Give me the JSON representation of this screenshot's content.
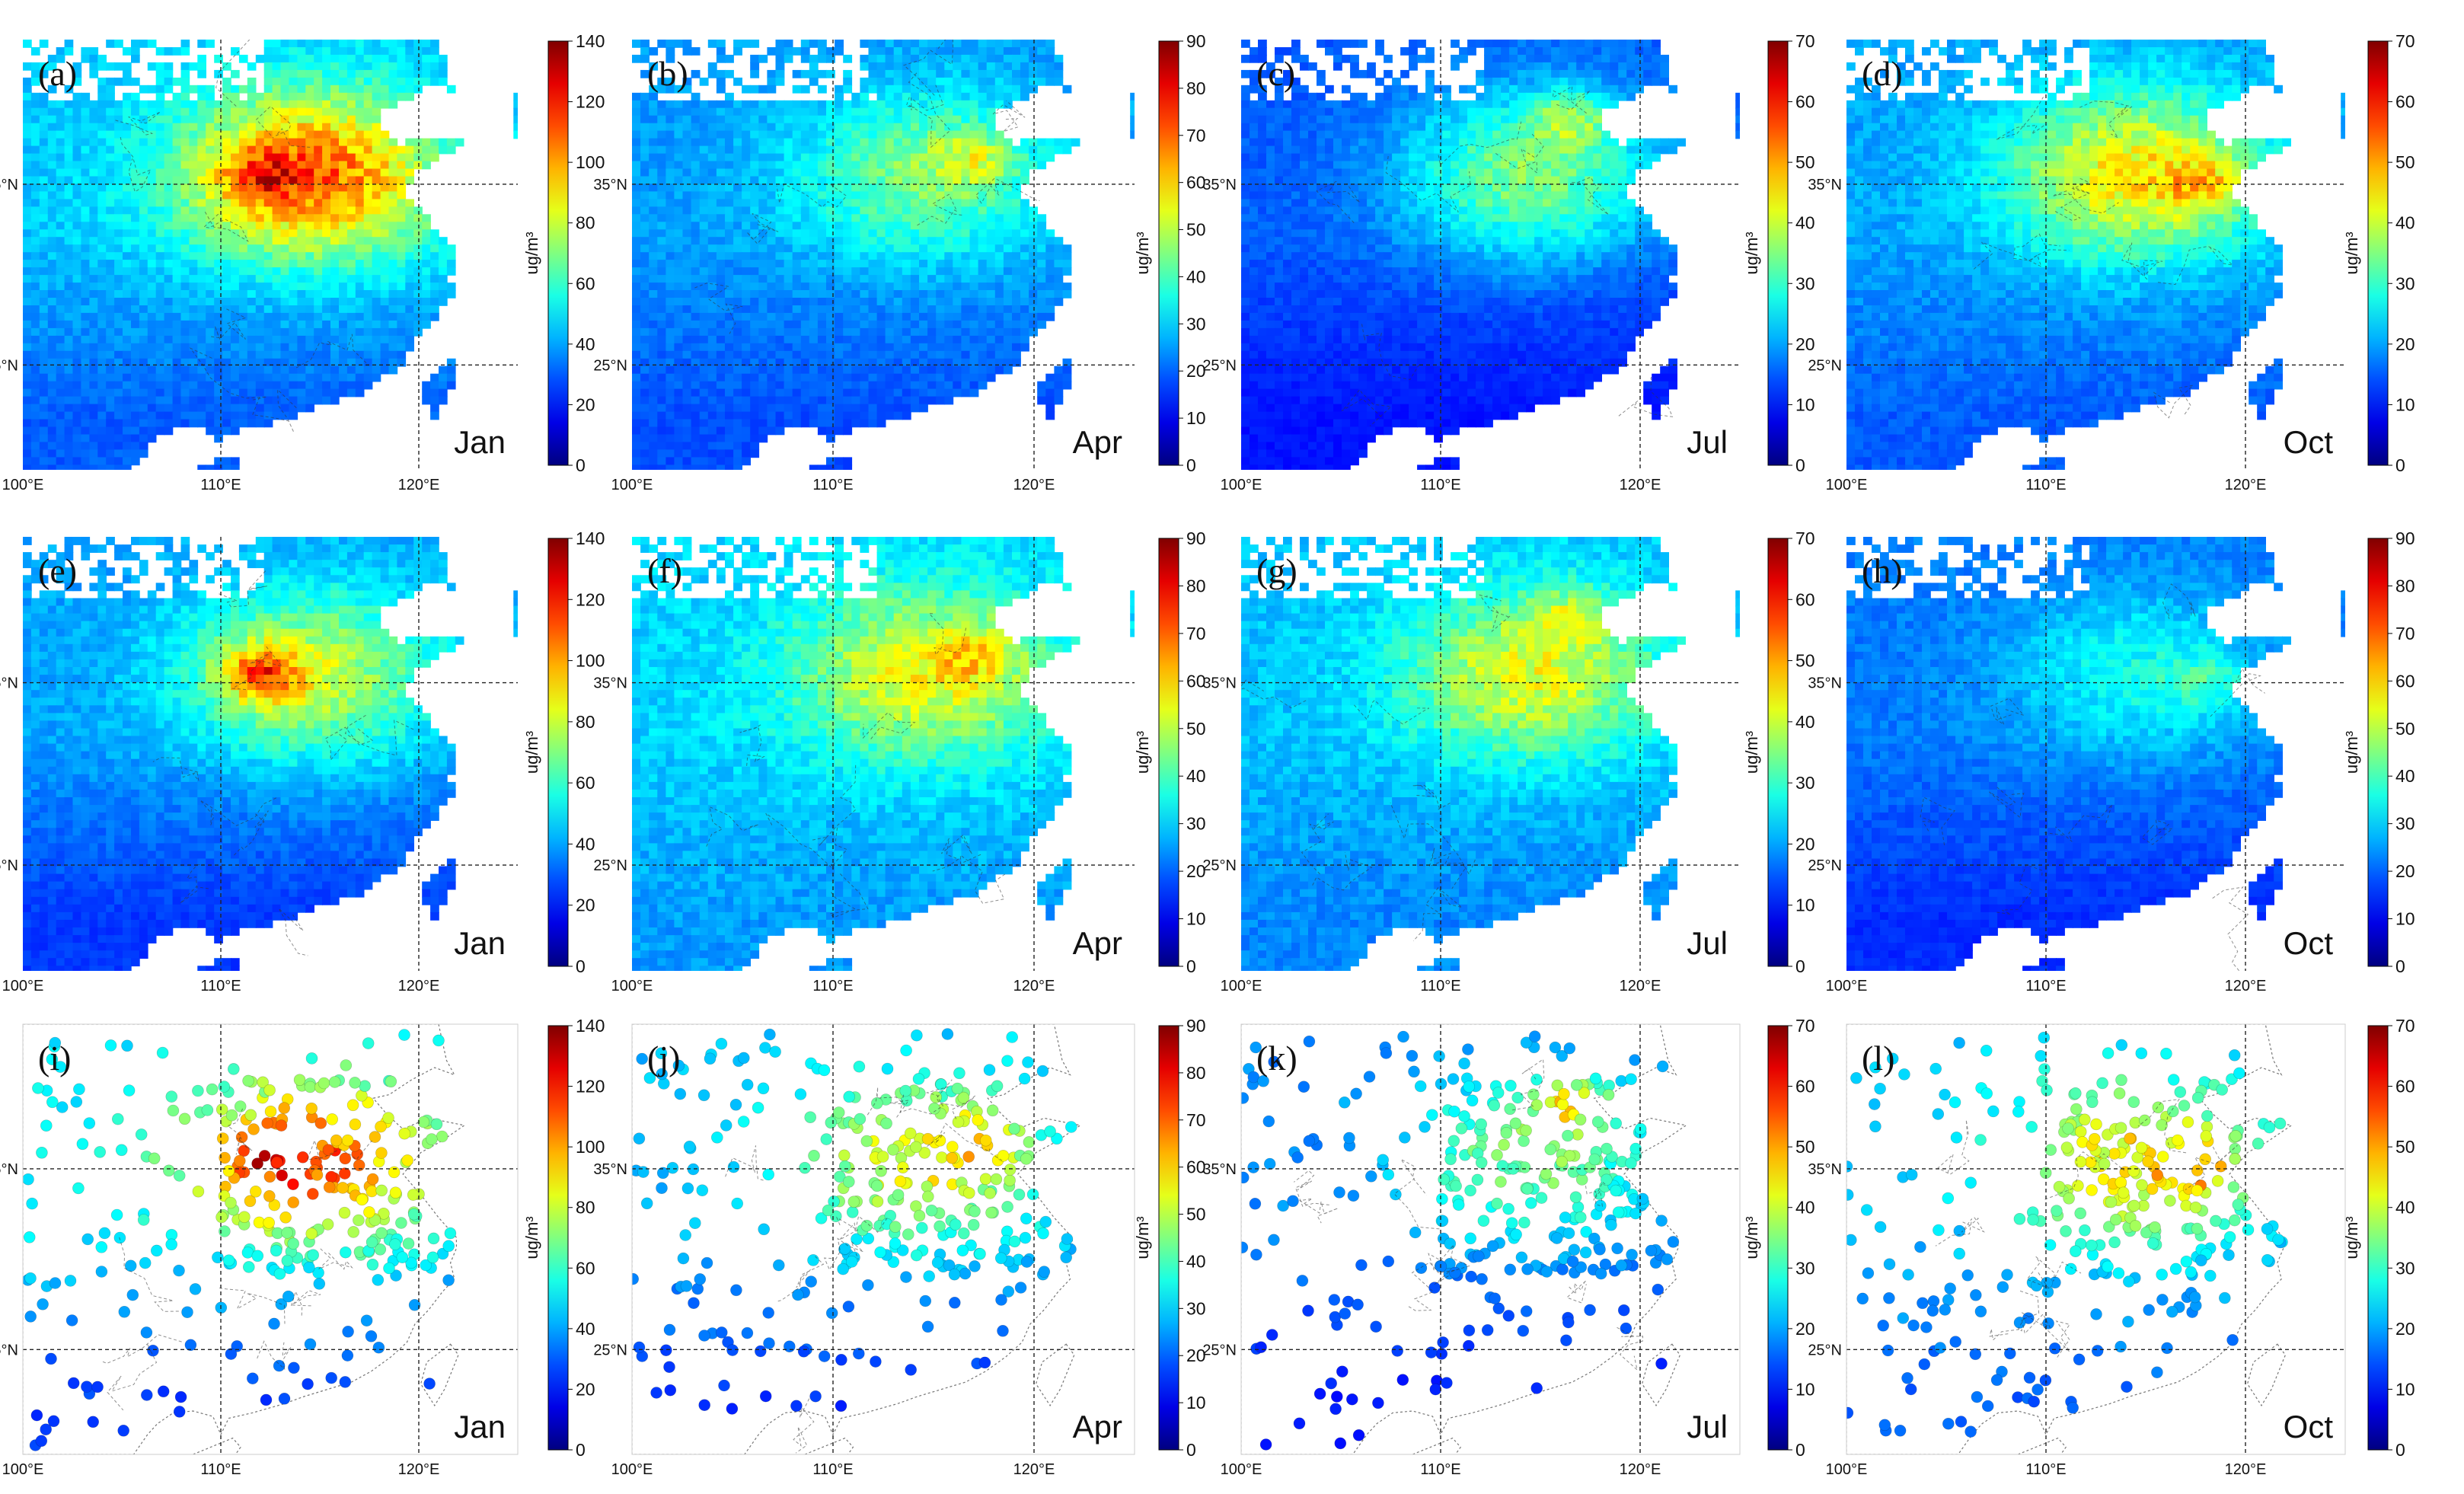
{
  "colors": {
    "ocean": "#ffffff",
    "grid": "#222222",
    "border": "#333333",
    "text": "#111111"
  },
  "axes": {
    "unit_label": "ug/m³",
    "lat_ticks": [
      "35°N",
      "25°N"
    ],
    "lon_ticks": [
      "100°E",
      "110°E",
      "120°E"
    ]
  },
  "chart_data": [
    {
      "type": "heatmap",
      "panel": "(a)",
      "month": "Jan",
      "row": "gridded-1",
      "colorbar": {
        "min": 0,
        "max": 140,
        "ticks": [
          0,
          20,
          40,
          60,
          80,
          100,
          120,
          140
        ]
      },
      "levels": {
        "base": 45,
        "north_china": 110,
        "hotspot": 135,
        "south": 30
      }
    },
    {
      "type": "heatmap",
      "panel": "(b)",
      "month": "Apr",
      "row": "gridded-1",
      "colorbar": {
        "min": 0,
        "max": 90,
        "ticks": [
          0,
          10,
          20,
          30,
          40,
          50,
          60,
          70,
          80,
          90
        ]
      },
      "levels": {
        "base": 25,
        "north_china": 45,
        "hotspot": 60,
        "south": 18
      }
    },
    {
      "type": "heatmap",
      "panel": "(c)",
      "month": "Jul",
      "row": "gridded-1",
      "colorbar": {
        "min": 0,
        "max": 70,
        "ticks": [
          0,
          10,
          20,
          30,
          40,
          50,
          60,
          70
        ]
      },
      "levels": {
        "base": 15,
        "north_china": 35,
        "hotspot": 50,
        "south": 10
      }
    },
    {
      "type": "heatmap",
      "panel": "(d)",
      "month": "Oct",
      "row": "gridded-1",
      "colorbar": {
        "min": 0,
        "max": 70,
        "ticks": [
          0,
          10,
          20,
          30,
          40,
          50,
          60,
          70
        ]
      },
      "levels": {
        "base": 20,
        "north_china": 45,
        "hotspot": 58,
        "south": 15
      }
    },
    {
      "type": "heatmap",
      "panel": "(e)",
      "month": "Jan",
      "row": "gridded-2",
      "colorbar": {
        "min": 0,
        "max": 140,
        "ticks": [
          0,
          20,
          40,
          60,
          80,
          100,
          120,
          140
        ]
      },
      "levels": {
        "base": 40,
        "north_china": 80,
        "hotspot": 130,
        "south": 25
      }
    },
    {
      "type": "heatmap",
      "panel": "(f)",
      "month": "Apr",
      "row": "gridded-2",
      "colorbar": {
        "min": 0,
        "max": 90,
        "ticks": [
          0,
          10,
          20,
          30,
          40,
          50,
          60,
          70,
          80,
          90
        ]
      },
      "levels": {
        "base": 30,
        "north_china": 55,
        "hotspot": 68,
        "south": 25
      }
    },
    {
      "type": "heatmap",
      "panel": "(g)",
      "month": "Jul",
      "row": "gridded-2",
      "colorbar": {
        "min": 0,
        "max": 70,
        "ticks": [
          0,
          10,
          20,
          30,
          40,
          50,
          60,
          70
        ]
      },
      "levels": {
        "base": 22,
        "north_china": 42,
        "hotspot": 52,
        "south": 18
      }
    },
    {
      "type": "heatmap",
      "panel": "(h)",
      "month": "Oct",
      "row": "gridded-2",
      "colorbar": {
        "min": 0,
        "max": 90,
        "ticks": [
          0,
          10,
          20,
          30,
          40,
          50,
          60,
          70,
          80,
          90
        ]
      },
      "levels": {
        "base": 22,
        "north_china": 35,
        "hotspot": 45,
        "south": 15
      }
    },
    {
      "type": "scatter",
      "panel": "(i)",
      "month": "Jan",
      "row": "stations",
      "colorbar": {
        "min": 0,
        "max": 140,
        "ticks": [
          0,
          20,
          40,
          60,
          80,
          100,
          120,
          140
        ]
      },
      "levels": {
        "base": 50,
        "north_china": 110,
        "hotspot": 135,
        "south": 25
      }
    },
    {
      "type": "scatter",
      "panel": "(j)",
      "month": "Apr",
      "row": "stations",
      "colorbar": {
        "min": 0,
        "max": 90,
        "ticks": [
          0,
          10,
          20,
          30,
          40,
          50,
          60,
          70,
          80,
          90
        ]
      },
      "levels": {
        "base": 28,
        "north_china": 55,
        "hotspot": 70,
        "south": 15
      }
    },
    {
      "type": "scatter",
      "panel": "(k)",
      "month": "Jul",
      "row": "stations",
      "colorbar": {
        "min": 0,
        "max": 70,
        "ticks": [
          0,
          10,
          20,
          30,
          40,
          50,
          60,
          70
        ]
      },
      "levels": {
        "base": 18,
        "north_china": 35,
        "hotspot": 55,
        "south": 10
      }
    },
    {
      "type": "scatter",
      "panel": "(l)",
      "month": "Oct",
      "row": "stations",
      "colorbar": {
        "min": 0,
        "max": 70,
        "ticks": [
          0,
          10,
          20,
          30,
          40,
          50,
          60,
          70
        ]
      },
      "levels": {
        "base": 22,
        "north_china": 45,
        "hotspot": 60,
        "south": 15
      }
    }
  ]
}
